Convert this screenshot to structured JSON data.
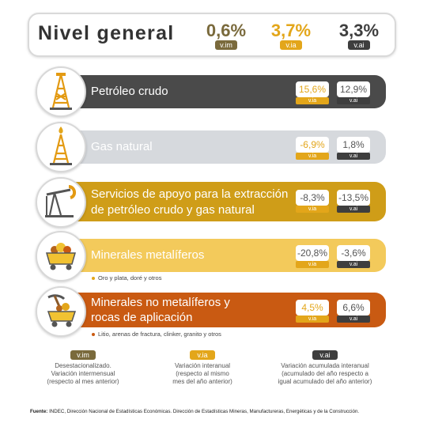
{
  "colors": {
    "vim": "#7a6a3c",
    "via": "#e3a61a",
    "vai": "#3e3e3e"
  },
  "header": {
    "title": "Nivel general",
    "values": [
      {
        "value": "0,6%",
        "badge": "v.im",
        "color": "#7a6a3c"
      },
      {
        "value": "3,7%",
        "badge": "v.ia",
        "color": "#e3a61a"
      },
      {
        "value": "3,3%",
        "badge": "v.ai",
        "color": "#3e3e3e"
      }
    ]
  },
  "rows": [
    {
      "id": "petroleo",
      "icon": "oil-derrick-icon",
      "title_lines": [
        "Petróleo crudo"
      ],
      "via": "15,6%",
      "vai": "12,9%",
      "via_badge": "v.ia",
      "vai_badge": "v.ai",
      "bg": "#4a4a4a",
      "text_color": "#ffffff",
      "subtitle": ""
    },
    {
      "id": "gas",
      "icon": "gas-derrick-icon",
      "title_lines": [
        "Gas natural"
      ],
      "via": "-6,9%",
      "vai": "1,8%",
      "via_badge": "v.ia",
      "vai_badge": "v.ai",
      "bg": "#d6d9dd",
      "text_color": "#ffffff",
      "subtitle": ""
    },
    {
      "id": "servicios",
      "icon": "pumpjack-icon",
      "title_lines": [
        "Servicios de apoyo para la extracción",
        "de petróleo crudo y gas natural"
      ],
      "via": "-8,3%",
      "vai": "-13,5%",
      "via_badge": "v.ia",
      "vai_badge": "v.ai",
      "bg": "#cf9d18",
      "text_color": "#ffffff",
      "subtitle": ""
    },
    {
      "id": "metaliferos",
      "icon": "mine-cart-icon",
      "title_lines": [
        "Minerales metalíferos"
      ],
      "via": "-20,8%",
      "vai": "-3,6%",
      "via_badge": "v.ia",
      "vai_badge": "v.ai",
      "bg": "#f3ca5b",
      "text_color": "#ffffff",
      "subtitle": "Oro y plata, doré y otros"
    },
    {
      "id": "no-metaliferos",
      "icon": "mine-cart-pickaxe-icon",
      "title_lines": [
        "Minerales no metalíferos y",
        "rocas de aplicación"
      ],
      "via": "4,5%",
      "vai": "6,6%",
      "via_badge": "v.ia",
      "vai_badge": "v.ai",
      "bg": "#c95a12",
      "text_color": "#ffffff",
      "subtitle": "Litio, arenas de fractura, clinker, granito y otros"
    }
  ],
  "legend": [
    {
      "badge": "v.im",
      "color": "#7a6a3c",
      "lines": [
        "Desestacionalizado.",
        "Variación intermensual",
        "(respecto al mes anterior)"
      ]
    },
    {
      "badge": "v.ia",
      "color": "#e3a61a",
      "lines": [
        "Variación interanual",
        "(respecto al mismo",
        "mes del año anterior)"
      ]
    },
    {
      "badge": "v.ai",
      "color": "#3e3e3e",
      "lines": [
        "Variación acumulada interanual",
        "(acumulado del año respecto a",
        "igual acumulado del año anterior)"
      ]
    }
  ],
  "footer": {
    "label": "Fuente:",
    "text": " INDEC, Dirección Nacional de Estadísticas Económicas. Dirección de Estadísticas Mineras, Manufactureras, Energéticas y de la Construcción."
  }
}
